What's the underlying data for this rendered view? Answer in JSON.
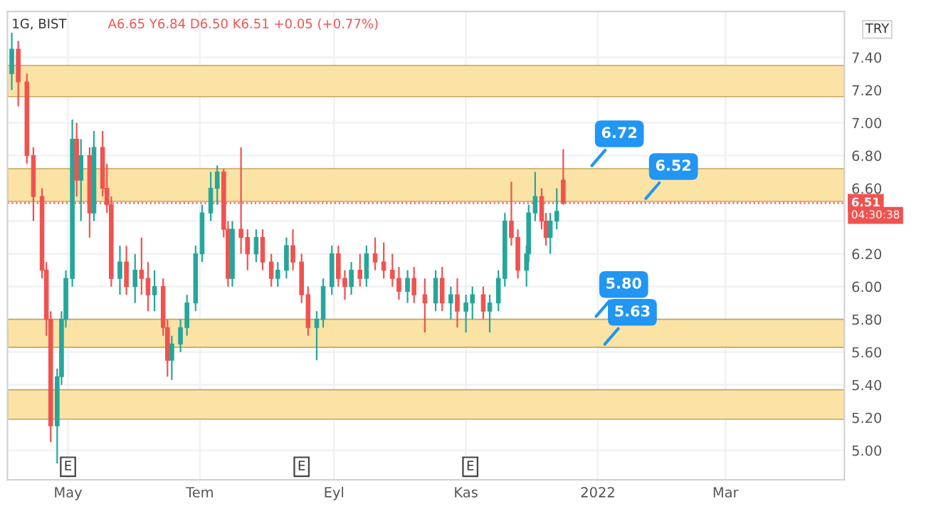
{
  "chart_data": {
    "type": "candlestick",
    "title": "1G, BIST",
    "x": [
      "2021-04-05",
      "2021-04-08",
      "2021-04-12",
      "2021-04-15",
      "2021-04-19",
      "2021-04-21",
      "2021-04-23",
      "2021-04-26",
      "2021-04-28",
      "2021-04-30",
      "2021-05-03",
      "2021-05-05",
      "2021-05-07",
      "2021-05-11",
      "2021-05-13",
      "2021-05-17",
      "2021-05-19",
      "2021-05-21",
      "2021-05-25",
      "2021-05-28",
      "2021-06-01",
      "2021-06-04",
      "2021-06-07",
      "2021-06-10",
      "2021-06-14",
      "2021-06-16",
      "2021-06-18",
      "2021-06-22",
      "2021-06-25",
      "2021-06-29",
      "2021-07-02",
      "2021-07-06",
      "2021-07-09",
      "2021-07-12",
      "2021-07-14",
      "2021-07-16",
      "2021-07-20",
      "2021-07-23",
      "2021-07-27",
      "2021-07-30",
      "2021-08-03",
      "2021-08-06",
      "2021-08-10",
      "2021-08-13",
      "2021-08-17",
      "2021-08-20",
      "2021-08-24",
      "2021-08-27",
      "2021-08-31",
      "2021-09-03",
      "2021-09-06",
      "2021-09-09",
      "2021-09-13",
      "2021-09-16",
      "2021-09-20",
      "2021-09-24",
      "2021-09-28",
      "2021-10-01",
      "2021-10-05",
      "2021-10-08",
      "2021-10-13",
      "2021-10-18",
      "2021-10-21",
      "2021-10-25",
      "2021-10-28",
      "2021-11-01",
      "2021-11-04",
      "2021-11-09",
      "2021-11-12",
      "2021-11-16",
      "2021-11-19",
      "2021-11-22",
      "2021-11-25",
      "2021-11-29",
      "2021-11-30",
      "2021-12-03",
      "2021-12-06",
      "2021-12-08",
      "2021-12-10",
      "2021-12-13",
      "2021-12-16"
    ],
    "ohlc": [
      [
        7.3,
        7.55,
        7.2,
        7.45
      ],
      [
        7.45,
        7.5,
        7.1,
        7.25
      ],
      [
        7.25,
        7.3,
        6.75,
        6.8
      ],
      [
        6.8,
        6.85,
        6.4,
        6.55
      ],
      [
        6.55,
        6.6,
        6.05,
        6.1
      ],
      [
        6.1,
        6.15,
        5.7,
        5.8
      ],
      [
        5.8,
        5.85,
        5.05,
        5.15
      ],
      [
        5.15,
        5.5,
        4.92,
        5.45
      ],
      [
        5.45,
        5.85,
        5.4,
        5.8
      ],
      [
        5.8,
        6.1,
        5.75,
        6.05
      ],
      [
        6.05,
        7.02,
        6.0,
        6.9
      ],
      [
        6.9,
        7.0,
        6.55,
        6.65
      ],
      [
        6.65,
        6.9,
        6.4,
        6.8
      ],
      [
        6.8,
        6.85,
        6.3,
        6.45
      ],
      [
        6.45,
        6.95,
        6.4,
        6.85
      ],
      [
        6.85,
        6.95,
        6.55,
        6.6
      ],
      [
        6.6,
        6.75,
        6.45,
        6.5
      ],
      [
        6.5,
        6.55,
        6.0,
        6.05
      ],
      [
        6.05,
        6.25,
        5.95,
        6.15
      ],
      [
        6.15,
        6.25,
        5.95,
        6.0
      ],
      [
        6.0,
        6.2,
        5.9,
        6.1
      ],
      [
        6.1,
        6.3,
        5.95,
        6.05
      ],
      [
        6.05,
        6.15,
        5.85,
        5.95
      ],
      [
        5.95,
        6.1,
        5.85,
        6.0
      ],
      [
        6.0,
        6.05,
        5.7,
        5.75
      ],
      [
        5.75,
        5.8,
        5.45,
        5.55
      ],
      [
        5.55,
        5.7,
        5.43,
        5.65
      ],
      [
        5.65,
        5.8,
        5.6,
        5.75
      ],
      [
        5.75,
        5.95,
        5.7,
        5.9
      ],
      [
        5.9,
        6.25,
        5.85,
        6.2
      ],
      [
        6.2,
        6.5,
        6.15,
        6.45
      ],
      [
        6.45,
        6.7,
        6.4,
        6.6
      ],
      [
        6.6,
        6.74,
        6.5,
        6.7
      ],
      [
        6.7,
        6.72,
        6.3,
        6.35
      ],
      [
        6.35,
        6.4,
        6.0,
        6.05
      ],
      [
        6.05,
        6.4,
        6.0,
        6.35
      ],
      [
        6.35,
        6.85,
        6.2,
        6.3
      ],
      [
        6.3,
        6.35,
        6.1,
        6.2
      ],
      [
        6.2,
        6.35,
        6.15,
        6.3
      ],
      [
        6.3,
        6.35,
        6.1,
        6.15
      ],
      [
        6.15,
        6.2,
        6.0,
        6.05
      ],
      [
        6.05,
        6.15,
        6.0,
        6.1
      ],
      [
        6.1,
        6.3,
        6.05,
        6.25
      ],
      [
        6.25,
        6.35,
        6.1,
        6.15
      ],
      [
        6.15,
        6.2,
        5.9,
        5.95
      ],
      [
        5.95,
        6.0,
        5.7,
        5.75
      ],
      [
        5.75,
        5.85,
        5.55,
        5.8
      ],
      [
        5.8,
        6.05,
        5.75,
        6.0
      ],
      [
        6.0,
        6.25,
        5.95,
        6.2
      ],
      [
        6.2,
        6.25,
        6.0,
        6.05
      ],
      [
        6.05,
        6.1,
        5.92,
        6.0
      ],
      [
        6.0,
        6.15,
        5.95,
        6.1
      ],
      [
        6.1,
        6.2,
        6.0,
        6.05
      ],
      [
        6.05,
        6.25,
        6.0,
        6.2
      ],
      [
        6.2,
        6.3,
        6.1,
        6.15
      ],
      [
        6.15,
        6.27,
        6.05,
        6.1
      ],
      [
        6.1,
        6.2,
        6.0,
        6.05
      ],
      [
        6.05,
        6.12,
        5.92,
        5.97
      ],
      [
        5.97,
        6.1,
        5.9,
        6.05
      ],
      [
        6.05,
        6.12,
        5.9,
        5.95
      ],
      [
        5.95,
        6.05,
        5.72,
        5.9
      ],
      [
        5.9,
        6.1,
        5.85,
        6.05
      ],
      [
        6.05,
        6.12,
        5.85,
        5.9
      ],
      [
        5.9,
        6.0,
        5.8,
        5.95
      ],
      [
        5.95,
        6.05,
        5.75,
        5.85
      ],
      [
        5.85,
        5.95,
        5.72,
        5.9
      ],
      [
        5.9,
        6.0,
        5.8,
        5.95
      ],
      [
        5.95,
        6.0,
        5.8,
        5.85
      ],
      [
        5.85,
        5.95,
        5.72,
        5.9
      ],
      [
        5.9,
        6.1,
        5.85,
        6.05
      ],
      [
        6.05,
        6.45,
        6.0,
        6.4
      ],
      [
        6.4,
        6.64,
        6.25,
        6.3
      ],
      [
        6.3,
        6.35,
        6.05,
        6.1
      ],
      [
        6.1,
        6.25,
        6.0,
        6.2
      ],
      [
        6.2,
        6.5,
        6.15,
        6.45
      ],
      [
        6.45,
        6.7,
        6.4,
        6.55
      ],
      [
        6.55,
        6.6,
        6.35,
        6.4
      ],
      [
        6.4,
        6.45,
        6.25,
        6.3
      ],
      [
        6.3,
        6.45,
        6.2,
        6.4
      ],
      [
        6.4,
        6.6,
        6.35,
        6.46
      ],
      [
        6.65,
        6.84,
        6.5,
        6.51
      ]
    ],
    "colors": [
      "#26a69a",
      "#ef5350",
      "#ef5350",
      "#ef5350",
      "#ef5350",
      "#ef5350",
      "#ef5350",
      "#26a69a",
      "#26a69a",
      "#26a69a",
      "#26a69a",
      "#ef5350",
      "#26a69a",
      "#ef5350",
      "#26a69a",
      "#ef5350",
      "#ef5350",
      "#ef5350",
      "#26a69a",
      "#ef5350",
      "#26a69a",
      "#ef5350",
      "#ef5350",
      "#26a69a",
      "#ef5350",
      "#ef5350",
      "#26a69a",
      "#26a69a",
      "#26a69a",
      "#26a69a",
      "#26a69a",
      "#26a69a",
      "#26a69a",
      "#ef5350",
      "#ef5350",
      "#26a69a",
      "#ef5350",
      "#ef5350",
      "#26a69a",
      "#ef5350",
      "#ef5350",
      "#26a69a",
      "#26a69a",
      "#ef5350",
      "#ef5350",
      "#ef5350",
      "#26a69a",
      "#26a69a",
      "#26a69a",
      "#ef5350",
      "#ef5350",
      "#26a69a",
      "#ef5350",
      "#26a69a",
      "#ef5350",
      "#ef5350",
      "#ef5350",
      "#ef5350",
      "#26a69a",
      "#ef5350",
      "#ef5350",
      "#26a69a",
      "#ef5350",
      "#26a69a",
      "#ef5350",
      "#26a69a",
      "#26a69a",
      "#ef5350",
      "#26a69a",
      "#26a69a",
      "#26a69a",
      "#ef5350",
      "#ef5350",
      "#26a69a",
      "#26a69a",
      "#26a69a",
      "#ef5350",
      "#ef5350",
      "#26a69a",
      "#26a69a",
      "#ef5350"
    ],
    "xlim": [
      "2021-04-03",
      "2022-04-25"
    ],
    "xticks": [
      {
        "value": "2021-05-01",
        "label": "May"
      },
      {
        "value": "2021-07-01",
        "label": "Tem"
      },
      {
        "value": "2021-09-01",
        "label": "Eyl"
      },
      {
        "value": "2021-11-01",
        "label": "Kas"
      },
      {
        "value": "2022-01-01",
        "label": "2022"
      },
      {
        "value": "2022-03-01",
        "label": "Mar"
      }
    ],
    "ylim": [
      4.82,
      7.68
    ],
    "yticks": [
      {
        "value": 5.0,
        "label": "5.00"
      },
      {
        "value": 5.2,
        "label": "5.20"
      },
      {
        "value": 5.4,
        "label": "5.40"
      },
      {
        "value": 5.6,
        "label": "5.60"
      },
      {
        "value": 5.8,
        "label": "5.80"
      },
      {
        "value": 6.0,
        "label": "6.00"
      },
      {
        "value": 6.2,
        "label": "6.20"
      },
      {
        "value": 6.4,
        "label": null
      },
      {
        "value": 6.6,
        "label": "6.60"
      },
      {
        "value": 6.8,
        "label": "6.80"
      },
      {
        "value": 7.0,
        "label": "7.00"
      },
      {
        "value": 7.2,
        "label": "7.20"
      },
      {
        "value": 7.4,
        "label": "7.40"
      }
    ],
    "grid": true,
    "bands": [
      {
        "axis": "y",
        "from": 7.16,
        "to": 7.35,
        "color": "#fbe3a6"
      },
      {
        "axis": "y",
        "from": 6.52,
        "to": 6.72,
        "color": "#fbe3a6"
      },
      {
        "axis": "y",
        "from": 5.63,
        "to": 5.8,
        "color": "#fbe3a6"
      },
      {
        "axis": "y",
        "from": 5.19,
        "to": 5.37,
        "color": "#fbe3a6"
      }
    ],
    "ref_lines": [
      {
        "axis": "y",
        "value": 6.51,
        "label": "6.51",
        "color": "#ef5350",
        "line_style": "dotted"
      }
    ],
    "annotations": [
      "A6.65 Y6.84 D6.50 K6.51 +0.05 (+0.77%)",
      "TRY",
      "04:30:38",
      {
        "text": "6.72",
        "x": "2021-12-28",
        "y": 6.72
      },
      {
        "text": "6.52",
        "x": "2022-01-22",
        "y": 6.52
      },
      {
        "text": "5.80",
        "x": "2021-12-30",
        "y": 5.8
      },
      {
        "text": "5.63",
        "x": "2022-01-03",
        "y": 5.63
      },
      {
        "text": "E",
        "x": "2021-05-01",
        "y": 4.9
      },
      {
        "text": "E",
        "x": "2021-08-17",
        "y": 4.9
      },
      {
        "text": "E",
        "x": "2021-11-03",
        "y": 4.9
      }
    ]
  }
}
